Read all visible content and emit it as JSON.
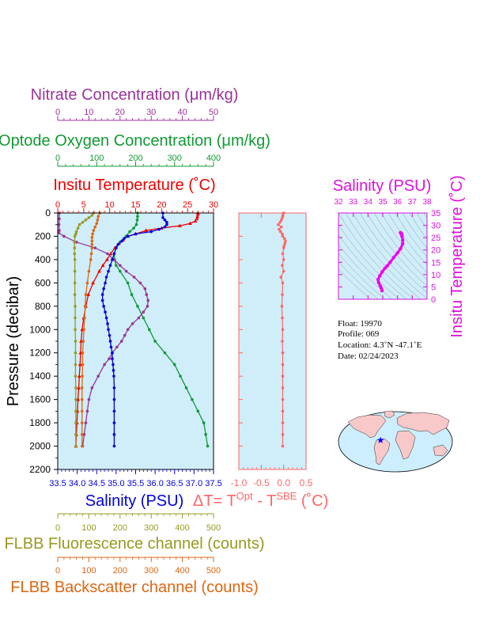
{
  "chart_data": [
    {
      "type": "line",
      "yaxis": {
        "label": "Pressure (decibar)",
        "range": [
          0,
          2200
        ],
        "ticks": [
          0,
          200,
          400,
          600,
          800,
          1000,
          1200,
          1400,
          1600,
          1800,
          2000,
          2200
        ],
        "inverted": true
      },
      "axes": {
        "temperature": {
          "label": "Insitu Temperature (˚C)",
          "range": [
            0,
            30
          ],
          "ticks": [
            0,
            5,
            10,
            15,
            20,
            25,
            30
          ],
          "color": "#ee0000",
          "position": "top"
        },
        "oxygen": {
          "label": "Optode Oxygen Concentration (μm/kg)",
          "range": [
            0,
            400
          ],
          "ticks": [
            0,
            100,
            200,
            300,
            400
          ],
          "color": "#119933",
          "position": "top"
        },
        "nitrate": {
          "label": "Nitrate Concentration (μm/kg)",
          "range": [
            0,
            50
          ],
          "ticks": [
            0,
            10,
            20,
            30,
            40,
            50
          ],
          "color": "#993399",
          "position": "top"
        },
        "salinity": {
          "label": "Salinity (PSU)",
          "range": [
            33.5,
            37.5
          ],
          "ticks": [
            "33.5",
            "34.0",
            "34.5",
            "35.0",
            "35.5",
            "36.0",
            "36.5",
            "37.0",
            "37.5"
          ],
          "color": "#0000dd",
          "position": "bottom"
        },
        "fluorescence": {
          "label": "FLBB Fluorescence channel (counts)",
          "range": [
            0,
            500
          ],
          "ticks": [
            0,
            100,
            200,
            300,
            400,
            500
          ],
          "color": "#999922",
          "position": "bottom"
        },
        "backscatter": {
          "label": "FLBB Backscatter channel (counts)",
          "range": [
            0,
            500
          ],
          "ticks": [
            0,
            100,
            200,
            300,
            400,
            500
          ],
          "color": "#dd6611",
          "position": "bottom"
        }
      },
      "series": [
        {
          "axis": "temperature",
          "color": "#ee0000",
          "p": [
            0,
            10,
            30,
            50,
            70,
            90,
            110,
            130,
            150,
            180,
            200,
            230,
            260,
            300,
            350,
            400,
            450,
            500,
            600,
            700,
            800,
            900,
            1000,
            1100,
            1200,
            1300,
            1400,
            1500,
            1600,
            1700,
            1800,
            1900,
            2000
          ],
          "v": [
            27.0,
            27.0,
            26.9,
            26.8,
            26.5,
            25.5,
            23.5,
            20.0,
            17.0,
            15.0,
            13.5,
            12.6,
            11.8,
            11.0,
            10.2,
            9.5,
            8.7,
            8.0,
            6.8,
            5.9,
            5.4,
            5.0,
            4.7,
            4.5,
            4.4,
            4.3,
            4.15,
            4.05,
            3.9,
            3.8,
            3.7,
            3.6,
            3.5
          ]
        },
        {
          "axis": "oxygen",
          "color": "#119933",
          "p": [
            0,
            30,
            60,
            100,
            130,
            160,
            200,
            250,
            300,
            350,
            400,
            450,
            500,
            600,
            700,
            800,
            900,
            1000,
            1100,
            1200,
            1300,
            1400,
            1500,
            1600,
            1700,
            1800,
            1900,
            2000
          ],
          "v": [
            205,
            205,
            204,
            202,
            195,
            185,
            175,
            160,
            150,
            145,
            146,
            150,
            160,
            180,
            190,
            205,
            220,
            235,
            250,
            275,
            300,
            315,
            330,
            345,
            360,
            375,
            380,
            385
          ]
        },
        {
          "axis": "nitrate",
          "color": "#993399",
          "p": [
            0,
            50,
            100,
            150,
            170,
            200,
            250,
            300,
            350,
            400,
            450,
            500,
            550,
            600,
            650,
            700,
            750,
            800,
            850,
            900,
            950,
            1000,
            1050,
            1100,
            1150,
            1200,
            1250,
            1300,
            1400,
            1500,
            1600,
            1700,
            1800,
            1900,
            2000
          ],
          "v": [
            0.5,
            0.5,
            0.4,
            0.5,
            0.3,
            2.0,
            6.0,
            12.0,
            16.0,
            18.0,
            20.0,
            22.0,
            24.5,
            26.5,
            28.0,
            28.5,
            29.0,
            28.8,
            27.5,
            26.0,
            24.0,
            22.5,
            21.5,
            20.5,
            19.0,
            17.5,
            16.5,
            15.0,
            13.0,
            11.0,
            10.0,
            9.5,
            9.0,
            8.5,
            8.0
          ]
        },
        {
          "axis": "salinity",
          "color": "#0000dd",
          "p": [
            0,
            40,
            60,
            80,
            100,
            120,
            140,
            160,
            180,
            200,
            220,
            240,
            270,
            300,
            350,
            400,
            450,
            500,
            550,
            600,
            650,
            700,
            750,
            800,
            850,
            900,
            950,
            1000,
            1050,
            1100,
            1150,
            1200,
            1250,
            1300,
            1350,
            1400,
            1500,
            1600,
            1700,
            1800,
            1900,
            2000
          ],
          "v": [
            36.2,
            36.2,
            36.25,
            36.3,
            36.3,
            36.25,
            36.1,
            35.9,
            35.5,
            35.3,
            35.2,
            35.15,
            35.05,
            35.0,
            34.95,
            34.9,
            34.85,
            34.8,
            34.75,
            34.72,
            34.68,
            34.65,
            34.65,
            34.68,
            34.72,
            34.75,
            34.78,
            34.8,
            34.83,
            34.85,
            34.87,
            34.9,
            34.9,
            34.92,
            34.93,
            34.94,
            34.95,
            34.95,
            34.95,
            34.95,
            34.95,
            34.95
          ]
        },
        {
          "axis": "fluorescence",
          "color": "#999922",
          "p": [
            0,
            20,
            40,
            60,
            80,
            100,
            130,
            160,
            180,
            200,
            250,
            300,
            350,
            400,
            500,
            600,
            700,
            800,
            900,
            1000,
            1100,
            1200,
            1300,
            1400,
            1500,
            1600,
            1700,
            1800,
            1900,
            2000
          ],
          "v": [
            115,
            110,
            100,
            90,
            80,
            70,
            65,
            60,
            58,
            55,
            54,
            54,
            54,
            55,
            55,
            55,
            55,
            56,
            56,
            56,
            57,
            57,
            57,
            57,
            58,
            58,
            58,
            58,
            58,
            58
          ]
        },
        {
          "axis": "backscatter",
          "color": "#dd6611",
          "p": [
            0,
            30,
            60,
            90,
            120,
            150,
            180,
            210,
            240,
            270,
            300,
            350,
            400,
            500,
            600,
            700,
            800,
            900,
            1000,
            1100,
            1200,
            1300,
            1400,
            1500,
            1600,
            1700,
            1800,
            1900,
            2000
          ],
          "v": [
            135,
            130,
            128,
            125,
            120,
            115,
            112,
            110,
            110,
            110,
            110,
            108,
            106,
            100,
            95,
            90,
            88,
            86,
            84,
            82,
            80,
            80,
            79,
            78,
            78,
            78,
            78,
            78,
            78
          ]
        }
      ]
    },
    {
      "type": "line",
      "xaxis": {
        "label": "ΔT= T",
        "label_sup1": "Opt",
        "label_mid": " - T",
        "label_sup2": "SBE",
        "label_end": " (˚C)",
        "range": [
          -1.0,
          0.5
        ],
        "ticks": [
          "-1.0",
          "-0.5",
          "0.0",
          "0.5"
        ],
        "color": "#ff6666"
      },
      "yaxis": {
        "range": [
          0,
          2200
        ],
        "inverted": true
      },
      "series": [
        {
          "color": "#ff6666",
          "p": [
            0,
            20,
            40,
            60,
            80,
            100,
            120,
            140,
            160,
            180,
            200,
            220,
            240,
            260,
            280,
            300,
            350,
            400,
            450,
            500,
            550,
            600,
            700,
            800,
            900,
            1000,
            1100,
            1200,
            1300,
            1400,
            1500,
            1600,
            1700,
            1800,
            1900,
            2000
          ],
          "v": [
            0.0,
            -0.02,
            -0.03,
            -0.05,
            -0.08,
            -0.12,
            -0.05,
            -0.1,
            -0.07,
            -0.03,
            -0.02,
            0.02,
            0.04,
            0.03,
            0.01,
            0.0,
            -0.02,
            0.0,
            -0.03,
            0.0,
            -0.06,
            -0.02,
            -0.03,
            -0.04,
            -0.03,
            -0.02,
            -0.03,
            -0.02,
            -0.02,
            -0.02,
            -0.02,
            -0.02,
            -0.02,
            -0.02,
            -0.02,
            -0.02
          ]
        }
      ]
    },
    {
      "type": "scatter",
      "xaxis": {
        "label": "Salinity (PSU)",
        "range": [
          32,
          38
        ],
        "ticks": [
          "32",
          "33",
          "34",
          "35",
          "36",
          "37",
          "38"
        ],
        "color": "#dd11dd"
      },
      "yaxis": {
        "label": "Insitu Temperature (˚C)",
        "range": [
          0,
          35
        ],
        "ticks": [
          "0",
          "5",
          "10",
          "15",
          "20",
          "25",
          "30",
          "35"
        ],
        "color": "#dd11dd"
      },
      "points": [
        [
          34.95,
          3.5
        ],
        [
          34.9,
          4.5
        ],
        [
          34.82,
          5.5
        ],
        [
          34.72,
          6.8
        ],
        [
          34.68,
          8.0
        ],
        [
          34.8,
          9.5
        ],
        [
          34.95,
          11.0
        ],
        [
          35.15,
          12.6
        ],
        [
          35.3,
          13.5
        ],
        [
          35.5,
          15.0
        ],
        [
          35.75,
          17.0
        ],
        [
          36.0,
          18.8
        ],
        [
          36.2,
          20.5
        ],
        [
          36.35,
          22.5
        ],
        [
          36.35,
          24.0
        ],
        [
          36.3,
          25.5
        ],
        [
          36.25,
          26.5
        ],
        [
          36.2,
          27.0
        ],
        [
          36.25,
          26.8
        ],
        [
          36.3,
          26.2
        ]
      ],
      "color": "#ee00ee"
    }
  ],
  "info": {
    "float": "Float:  19970",
    "profile": "Profile:  069",
    "location": "Location:  4.3˚N  -47.1˚E",
    "date": "Date:  02/24/2023"
  },
  "map": {
    "float_lat": 4.3,
    "float_lon": -47.1,
    "marker_color": "#0000ff",
    "land_color": "#f9c8c8",
    "ocean_color": "#cceeff"
  }
}
